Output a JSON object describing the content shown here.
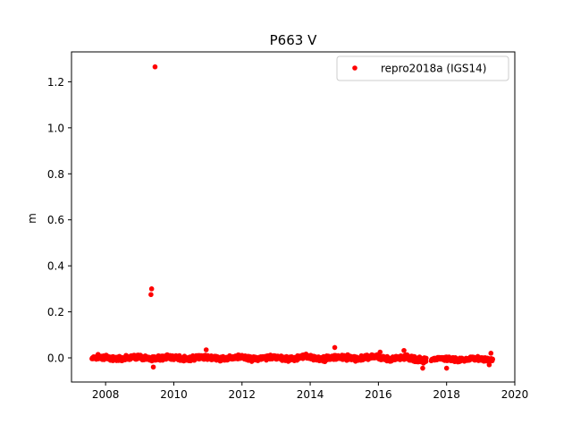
{
  "chart_data": {
    "type": "scatter",
    "title": "P663 V",
    "xlabel": "",
    "ylabel": "m",
    "xlim": [
      2007.0,
      2020.0
    ],
    "ylim": [
      -0.105,
      1.33
    ],
    "xticks": [
      2008,
      2010,
      2012,
      2014,
      2016,
      2018,
      2020
    ],
    "xtick_labels": [
      "2008",
      "2010",
      "2012",
      "2014",
      "2016",
      "2018",
      "2020"
    ],
    "yticks": [
      0.0,
      0.2,
      0.4,
      0.6,
      0.8,
      1.0,
      1.2
    ],
    "ytick_labels": [
      "0.0",
      "0.2",
      "0.4",
      "0.6",
      "0.8",
      "1.0",
      "1.2"
    ],
    "grid": false,
    "legend": {
      "position": "top-right"
    },
    "series": [
      {
        "name": "repro2018a (IGS14)",
        "color": "#ff0000",
        "marker": "circle",
        "segments": [
          {
            "x_start": 2007.6,
            "x_end": 2017.4,
            "base": 0.0,
            "spread": 0.012
          },
          {
            "x_start": 2017.55,
            "x_end": 2019.35,
            "base": -0.006,
            "spread": 0.01
          }
        ],
        "points": [
          {
            "x": 2009.45,
            "y": 1.265
          },
          {
            "x": 2009.35,
            "y": 0.3
          },
          {
            "x": 2009.33,
            "y": 0.275
          },
          {
            "x": 2014.72,
            "y": 0.045
          },
          {
            "x": 2010.95,
            "y": 0.035
          },
          {
            "x": 2016.75,
            "y": 0.032
          },
          {
            "x": 2016.05,
            "y": 0.025
          },
          {
            "x": 2019.3,
            "y": 0.02
          },
          {
            "x": 2009.4,
            "y": -0.04
          },
          {
            "x": 2017.3,
            "y": -0.045
          },
          {
            "x": 2018.0,
            "y": -0.045
          },
          {
            "x": 2019.25,
            "y": -0.03
          }
        ]
      }
    ]
  }
}
